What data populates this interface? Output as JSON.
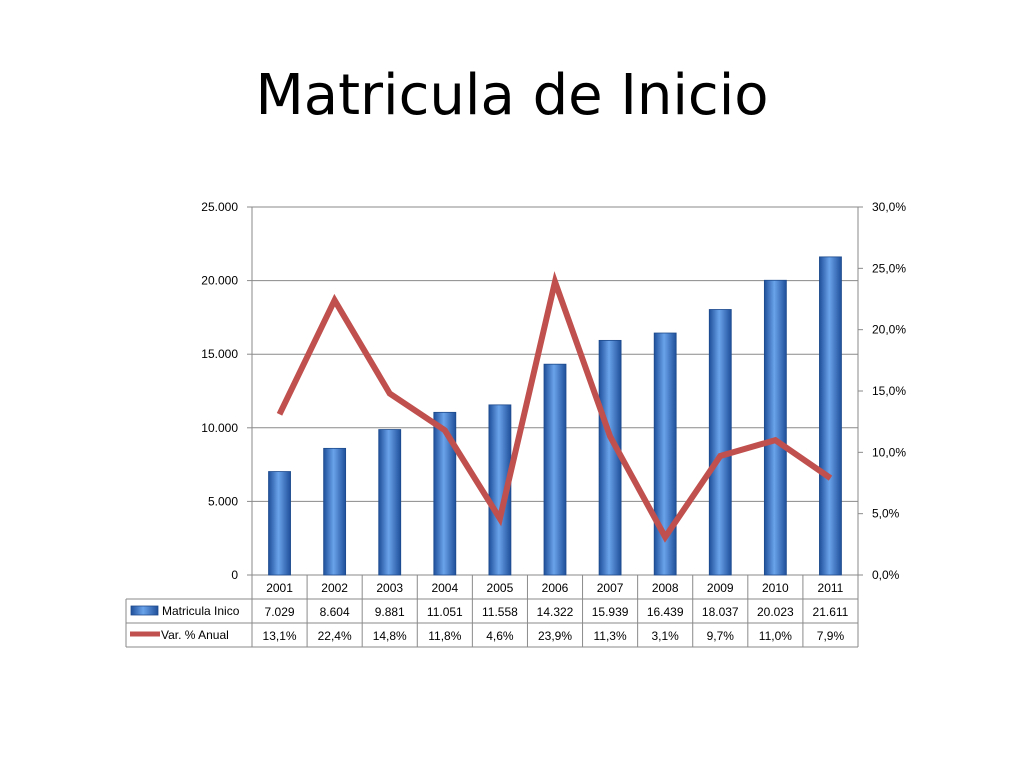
{
  "slide": {
    "title": "Matricula de Inicio"
  },
  "chart_data": {
    "type": "bar",
    "categories": [
      "2001",
      "2002",
      "2003",
      "2004",
      "2005",
      "2006",
      "2007",
      "2008",
      "2009",
      "2010",
      "2011"
    ],
    "series": [
      {
        "name": "Matricula Inico",
        "type": "bar",
        "axis": "left",
        "values": [
          7029,
          8604,
          9881,
          11051,
          11558,
          14322,
          15939,
          16439,
          18037,
          20023,
          21611
        ],
        "labels": [
          "7.029",
          "8.604",
          "9.881",
          "11.051",
          "11.558",
          "14.322",
          "15.939",
          "16.439",
          "18.037",
          "20.023",
          "21.611"
        ]
      },
      {
        "name": "Var. % Anual",
        "type": "line",
        "axis": "right",
        "values": [
          13.1,
          22.4,
          14.8,
          11.8,
          4.6,
          23.9,
          11.3,
          3.1,
          9.7,
          11.0,
          7.9
        ],
        "labels": [
          "13,1%",
          "22,4%",
          "14,8%",
          "11,8%",
          "4,6%",
          "23,9%",
          "11,3%",
          "3,1%",
          "9,7%",
          "11,0%",
          "7,9%"
        ]
      }
    ],
    "ylim": [
      0,
      25000
    ],
    "y2lim": [
      0,
      30
    ],
    "yticks": [
      0,
      5000,
      10000,
      15000,
      20000,
      25000
    ],
    "ytick_labels": [
      "0",
      "5.000",
      "10.000",
      "15.000",
      "20.000",
      "25.000"
    ],
    "y2ticks": [
      0,
      5,
      10,
      15,
      20,
      25,
      30
    ],
    "y2tick_labels": [
      "0,0%",
      "5,0%",
      "10,0%",
      "15,0%",
      "20,0%",
      "25,0%",
      "30,0%"
    ],
    "grid": true,
    "legend": "data-table",
    "colors": {
      "bar": "#3f7fcf",
      "line": "#c0504d"
    }
  }
}
